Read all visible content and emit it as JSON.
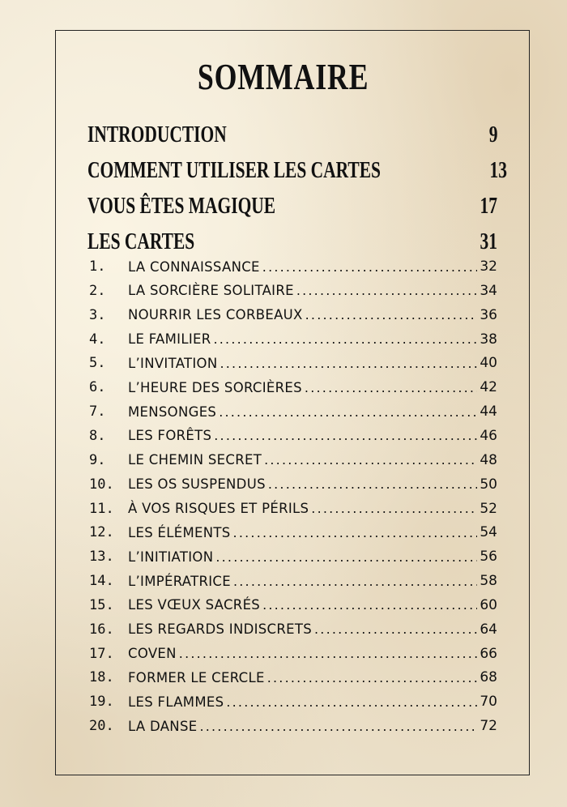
{
  "title": "SOMMAIRE",
  "sections": [
    {
      "label": "INTRODUCTION",
      "page": "9"
    },
    {
      "label": "COMMENT UTILISER LES CARTES",
      "page": "13"
    },
    {
      "label": "VOUS ÊTES MAGIQUE",
      "page": "17"
    },
    {
      "label": "LES CARTES",
      "page": "31"
    }
  ],
  "cards": [
    {
      "num": "1.",
      "label": "LA CONNAISSANCE",
      "page": "32"
    },
    {
      "num": "2.",
      "label": "LA SORCIÈRE SOLITAIRE",
      "page": "34"
    },
    {
      "num": "3.",
      "label": "NOURRIR LES CORBEAUX",
      "page": "36"
    },
    {
      "num": "4.",
      "label": "LE FAMILIER",
      "page": "38"
    },
    {
      "num": "5.",
      "label": "L’INVITATION",
      "page": "40"
    },
    {
      "num": "6.",
      "label": "L’HEURE DES SORCIÈRES",
      "page": "42"
    },
    {
      "num": "7.",
      "label": "MENSONGES",
      "page": "44"
    },
    {
      "num": "8.",
      "label": "LES FORÊTS",
      "page": "46"
    },
    {
      "num": "9.",
      "label": "LE CHEMIN SECRET",
      "page": "48"
    },
    {
      "num": "10.",
      "label": "LES OS SUSPENDUS",
      "page": "50"
    },
    {
      "num": "11.",
      "label": "À VOS RISQUES ET PÉRILS",
      "page": "52"
    },
    {
      "num": "12.",
      "label": "LES ÉLÉMENTS",
      "page": "54"
    },
    {
      "num": "13.",
      "label": "L’INITIATION",
      "page": "56"
    },
    {
      "num": "14.",
      "label": "L’IMPÉRATRICE",
      "page": "58"
    },
    {
      "num": "15.",
      "label": "LES VŒUX SACRÉS",
      "page": "60"
    },
    {
      "num": "16.",
      "label": "LES REGARDS INDISCRETS",
      "page": "64"
    },
    {
      "num": "17.",
      "label": "COVEN",
      "page": "66"
    },
    {
      "num": "18.",
      "label": "FORMER LE CERCLE",
      "page": "68"
    },
    {
      "num": "19.",
      "label": "LES FLAMMES",
      "page": "70"
    },
    {
      "num": "20.",
      "label": "LA DANSE",
      "page": "72"
    }
  ]
}
